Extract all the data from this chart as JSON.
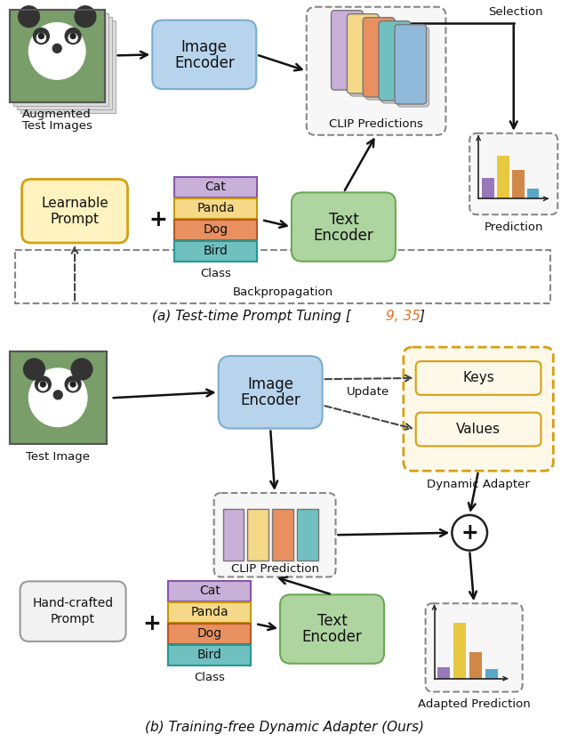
{
  "fig_width": 6.4,
  "fig_height": 8.34,
  "bg_color": "#ffffff",
  "colors": {
    "image_encoder_fill": "#b8d4ed",
    "image_encoder_edge": "#7aaccc",
    "text_encoder_fill": "#aed4a0",
    "text_encoder_edge": "#6aaa55",
    "learnable_prompt_fill": "#fef3c0",
    "learnable_prompt_edge": "#d4a017",
    "handcrafted_prompt_fill": "#f2f2f2",
    "handcrafted_prompt_edge": "#999999",
    "dashed_box_fill": "#f5f5f5",
    "dashed_box_edge": "#888888",
    "dynamic_adapter_fill": "#fef8e8",
    "dynamic_adapter_edge": "#d4a017",
    "keys_fill": "#fef8e8",
    "keys_edge": "#d4a017",
    "values_fill": "#fef8e8",
    "values_edge": "#d4a017",
    "cat_fill": "#c8b0d8",
    "panda_fill": "#f5d888",
    "dog_fill": "#e89060",
    "bird_fill": "#70c0c0",
    "bar_purple": "#9878b8",
    "bar_yellow": "#e8c840",
    "bar_orange": "#d08848",
    "bar_blue": "#58a8c8",
    "clip_cards": [
      "#c8b0d8",
      "#f5d888",
      "#e89060",
      "#70c0c0",
      "#90b8d8"
    ],
    "arrow_color": "#111111",
    "dashed_arrow_color": "#444444",
    "refs_color": "#e07020"
  },
  "panel_a_caption": "(a) Test-time Prompt Tuning [",
  "panel_a_refs": "9, 35",
  "panel_a_caption_end": "]",
  "panel_b_caption": "(b) Training-free Dynamic Adapter (Ours)"
}
